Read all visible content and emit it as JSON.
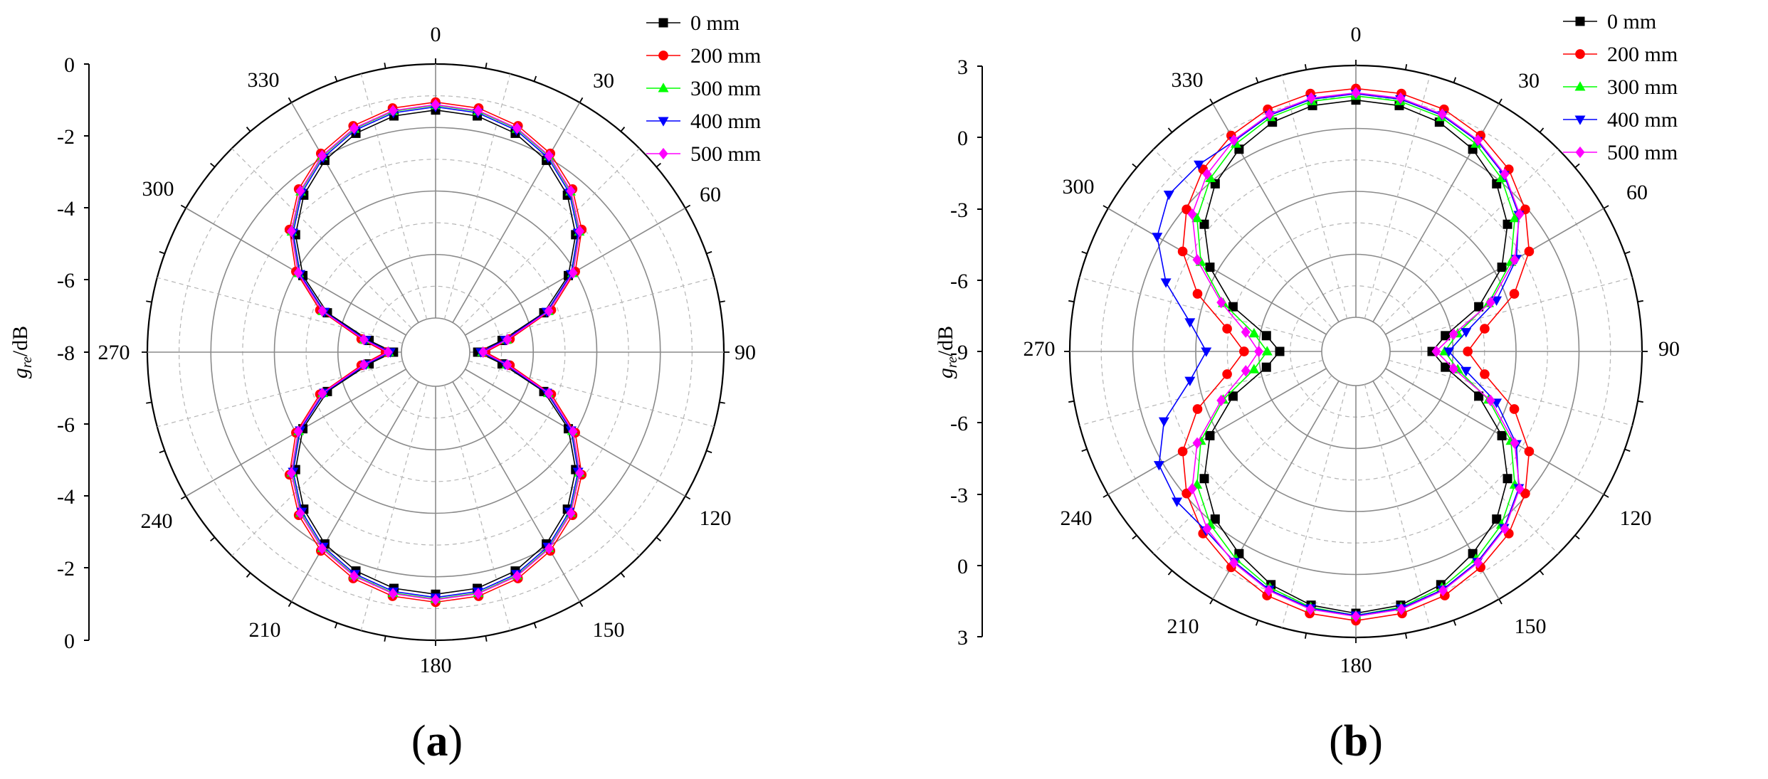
{
  "chart_data": [
    {
      "type": "polar-line",
      "panel_label": "(a)",
      "panel_letter": "a",
      "radial_axis_label": "g_re/dB",
      "radial_axis_label_main": "g",
      "radial_axis_label_sub": "re",
      "radial_axis_label_unit": "/dB",
      "angular_unit": "degrees",
      "angle_ticks": [
        0,
        30,
        60,
        90,
        120,
        150,
        180,
        210,
        240,
        270,
        300,
        330
      ],
      "radial_ticks": [
        0,
        -2,
        -4,
        -6,
        -8
      ],
      "radial_range": [
        -8,
        0
      ],
      "inner_radius_value": -8,
      "radial_tick_labels": [
        "0",
        "-2",
        "-4",
        "-6",
        "-8",
        "-6",
        "-4",
        "-2",
        "0"
      ],
      "angle_step_deg": 10,
      "legend_position": "top-right",
      "series": [
        {
          "name": "0 mm",
          "color": "#000000",
          "marker": "square",
          "values": [
            -1.45,
            -1.52,
            -1.74,
            -2.1,
            -2.62,
            -3.32,
            -4.25,
            -5.45,
            -6.95,
            -7.75,
            -6.95,
            -5.45,
            -4.25,
            -3.32,
            -2.62,
            -2.1,
            -1.74,
            -1.52,
            -1.45,
            -1.52,
            -1.74,
            -2.1,
            -2.62,
            -3.32,
            -4.25,
            -5.45,
            -6.95,
            -7.75,
            -6.95,
            -5.45,
            -4.25,
            -3.32,
            -2.62,
            -2.1,
            -1.74,
            -1.52
          ]
        },
        {
          "name": "200 mm",
          "color": "#ff0000",
          "marker": "circle",
          "values": [
            -1.2,
            -1.27,
            -1.49,
            -1.85,
            -2.37,
            -3.07,
            -4.0,
            -5.2,
            -6.7,
            -7.5,
            -6.7,
            -5.2,
            -4.0,
            -3.07,
            -2.37,
            -1.85,
            -1.49,
            -1.27,
            -1.2,
            -1.27,
            -1.49,
            -1.85,
            -2.37,
            -3.07,
            -4.0,
            -5.2,
            -6.7,
            -7.5,
            -6.7,
            -5.2,
            -4.0,
            -3.07,
            -2.37,
            -1.85,
            -1.49,
            -1.27
          ]
        },
        {
          "name": "300 mm",
          "color": "#00ff00",
          "marker": "triangle-up",
          "values": [
            -1.3,
            -1.37,
            -1.59,
            -1.95,
            -2.47,
            -3.17,
            -4.1,
            -5.3,
            -6.8,
            -7.6,
            -6.8,
            -5.3,
            -4.1,
            -3.17,
            -2.47,
            -1.95,
            -1.59,
            -1.37,
            -1.3,
            -1.37,
            -1.59,
            -1.95,
            -2.47,
            -3.17,
            -4.1,
            -5.3,
            -6.8,
            -7.6,
            -6.8,
            -5.3,
            -4.1,
            -3.17,
            -2.47,
            -1.95,
            -1.59,
            -1.37
          ]
        },
        {
          "name": "400 mm",
          "color": "#0000ff",
          "marker": "triangle-down",
          "values": [
            -1.35,
            -1.42,
            -1.64,
            -2.0,
            -2.52,
            -3.22,
            -4.15,
            -5.35,
            -6.85,
            -7.65,
            -6.85,
            -5.35,
            -4.15,
            -3.22,
            -2.52,
            -2.0,
            -1.64,
            -1.42,
            -1.35,
            -1.42,
            -1.64,
            -2.0,
            -2.52,
            -3.22,
            -4.15,
            -5.35,
            -6.85,
            -7.65,
            -6.85,
            -5.35,
            -4.15,
            -3.22,
            -2.52,
            -2.0,
            -1.64,
            -1.42
          ]
        },
        {
          "name": "500 mm",
          "color": "#ff00ff",
          "marker": "diamond",
          "values": [
            -1.28,
            -1.35,
            -1.57,
            -1.93,
            -2.45,
            -3.15,
            -4.08,
            -5.28,
            -6.78,
            -7.58,
            -6.78,
            -5.28,
            -4.08,
            -3.15,
            -2.45,
            -1.93,
            -1.57,
            -1.35,
            -1.28,
            -1.35,
            -1.57,
            -1.93,
            -2.45,
            -3.15,
            -4.08,
            -5.28,
            -6.78,
            -7.58,
            -6.78,
            -5.28,
            -4.08,
            -3.15,
            -2.45,
            -1.93,
            -1.57,
            -1.35
          ]
        }
      ]
    },
    {
      "type": "polar-line",
      "panel_label": "(b)",
      "panel_letter": "b",
      "radial_axis_label": "g_re/dB",
      "radial_axis_label_main": "g",
      "radial_axis_label_sub": "re",
      "radial_axis_label_unit": "/dB",
      "angular_unit": "degrees",
      "angle_ticks": [
        0,
        30,
        60,
        90,
        120,
        150,
        180,
        210,
        240,
        270,
        300,
        330
      ],
      "radial_ticks": [
        3,
        0,
        -3,
        -6,
        -9
      ],
      "radial_range": [
        -9,
        3
      ],
      "inner_radius_value": -9,
      "radial_tick_labels": [
        "3",
        "0",
        "-3",
        "-6",
        "-9",
        "-6",
        "-3",
        "0",
        "3"
      ],
      "angle_step_deg": 10,
      "legend_position": "top-right",
      "series": [
        {
          "name": "0 mm",
          "color": "#000000",
          "marker": "square",
          "values": [
            1.35,
            1.27,
            1.0,
            0.5,
            -0.2,
            -1.2,
            -2.6,
            -4.4,
            -6.3,
            -7.0,
            -6.3,
            -4.4,
            -2.6,
            -1.2,
            -0.2,
            0.5,
            1.2,
            1.65,
            1.85,
            1.65,
            1.2,
            0.5,
            -0.2,
            -1.2,
            -2.6,
            -4.4,
            -6.3,
            -7.0,
            -6.3,
            -4.4,
            -2.6,
            -1.2,
            -0.2,
            0.5,
            1.0,
            1.27
          ]
        },
        {
          "name": "200 mm",
          "color": "#ff0000",
          "marker": "circle",
          "values": [
            1.9,
            1.85,
            1.65,
            1.25,
            0.7,
            -0.1,
            -1.1,
            -2.6,
            -4.4,
            -5.3,
            -4.4,
            -2.6,
            -1.1,
            -0.1,
            0.7,
            1.25,
            1.75,
            2.05,
            2.2,
            2.05,
            1.75,
            1.25,
            0.7,
            -0.1,
            -1.1,
            -2.6,
            -4.4,
            -5.3,
            -4.4,
            -2.6,
            -1.1,
            -0.1,
            0.7,
            1.25,
            1.65,
            1.85
          ]
        },
        {
          "name": "300 mm",
          "color": "#00ff00",
          "marker": "triangle-up",
          "values": [
            1.55,
            1.48,
            1.25,
            0.8,
            0.15,
            -0.75,
            -2.1,
            -3.9,
            -5.7,
            -6.4,
            -5.7,
            -3.9,
            -2.1,
            -0.75,
            0.15,
            0.8,
            1.35,
            1.75,
            1.95,
            1.75,
            1.35,
            0.8,
            0.15,
            -0.75,
            -2.1,
            -3.9,
            -5.7,
            -6.4,
            -5.7,
            -3.9,
            -2.1,
            -0.75,
            0.15,
            0.8,
            1.25,
            1.48
          ]
        },
        {
          "name": "400 mm",
          "color": "#0000ff",
          "marker": "triangle-down",
          "values": [
            1.65,
            1.58,
            1.35,
            0.95,
            0.35,
            -0.5,
            -1.8,
            -3.5,
            -5.3,
            -6.2,
            -5.3,
            -3.5,
            -1.8,
            -0.5,
            0.35,
            0.95,
            1.45,
            1.8,
            1.95,
            1.8,
            1.45,
            0.95,
            0.5,
            0.5,
            0.2,
            -0.9,
            -2.6,
            -3.5,
            -2.6,
            -1.0,
            0.3,
            1.0,
            1.0,
            0.95,
            1.35,
            1.58
          ]
        },
        {
          "name": "500 mm",
          "color": "#ff00ff",
          "marker": "diamond",
          "values": [
            1.7,
            1.63,
            1.4,
            1.0,
            0.4,
            -0.45,
            -1.9,
            -3.8,
            -5.9,
            -6.8,
            -5.9,
            -3.8,
            -1.9,
            -0.45,
            0.4,
            1.0,
            1.5,
            1.85,
            2.0,
            1.85,
            1.5,
            1.0,
            0.4,
            -0.45,
            -1.9,
            -3.8,
            -5.3,
            -6.0,
            -5.3,
            -3.8,
            -1.9,
            -0.45,
            0.4,
            1.0,
            1.4,
            1.63
          ]
        }
      ]
    }
  ]
}
